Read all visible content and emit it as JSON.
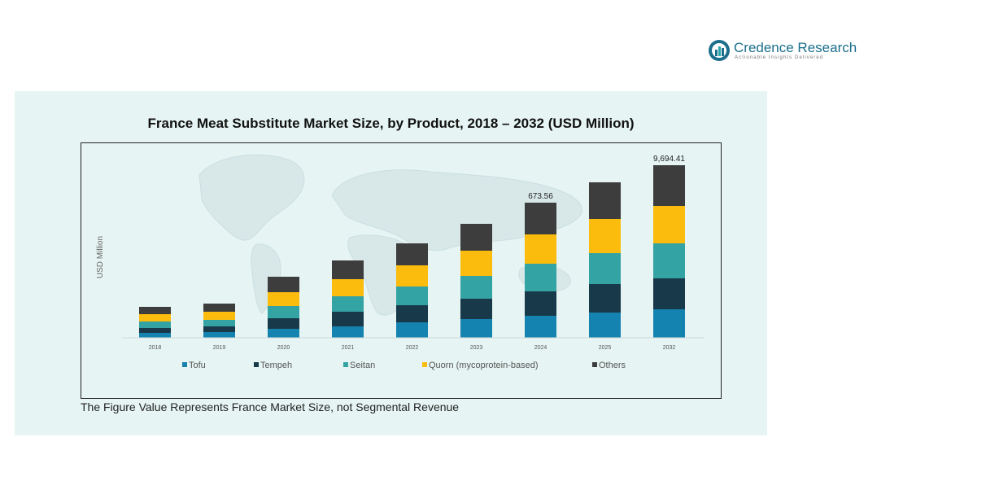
{
  "brand": {
    "name": "Credence Research",
    "tagline": "Actionable Insights Delivered"
  },
  "footnote": "The Figure Value Represents France Market Size, not Segmental Revenue",
  "colors": {
    "panel_background": "#e6f5f3",
    "brand_text": "#1b6f8c"
  },
  "chart_data": {
    "type": "bar",
    "stacked": true,
    "title": "France Meat Substitute Market Size, by Product, 2018 – 2032 (USD Million)",
    "xlabel": "",
    "ylabel": "USD Million",
    "y_axis_visible": false,
    "grid": false,
    "legend_position": "bottom",
    "background_decoration": "faint world map",
    "categories": [
      "2018",
      "2019",
      "2020",
      "2021",
      "2022",
      "2023",
      "2024",
      "2025",
      "2032"
    ],
    "series": [
      {
        "name": "Tofu",
        "color": "#1583b0",
        "values": [
          6,
          7,
          11,
          14,
          19,
          23,
          27,
          31,
          35
        ]
      },
      {
        "name": "Tempeh",
        "color": "#18394a",
        "values": [
          6,
          7,
          13,
          18,
          21,
          25,
          30,
          35,
          38
        ]
      },
      {
        "name": "Seitan",
        "color": "#34a3a3",
        "values": [
          8,
          8,
          15,
          19,
          23,
          28,
          34,
          38,
          43
        ]
      },
      {
        "name": "Quorn (mycoprotein-based)",
        "color": "#fbbc0e",
        "values": [
          9,
          10,
          17,
          21,
          26,
          31,
          36,
          42,
          46
        ]
      },
      {
        "name": "Others",
        "color": "#3d3d3d",
        "values": [
          9,
          10,
          19,
          23,
          27,
          33,
          39,
          45,
          50
        ]
      }
    ],
    "data_labels": [
      {
        "category": "2024",
        "text": "673.56"
      },
      {
        "category": "2032",
        "text": "9,694.41"
      }
    ]
  }
}
